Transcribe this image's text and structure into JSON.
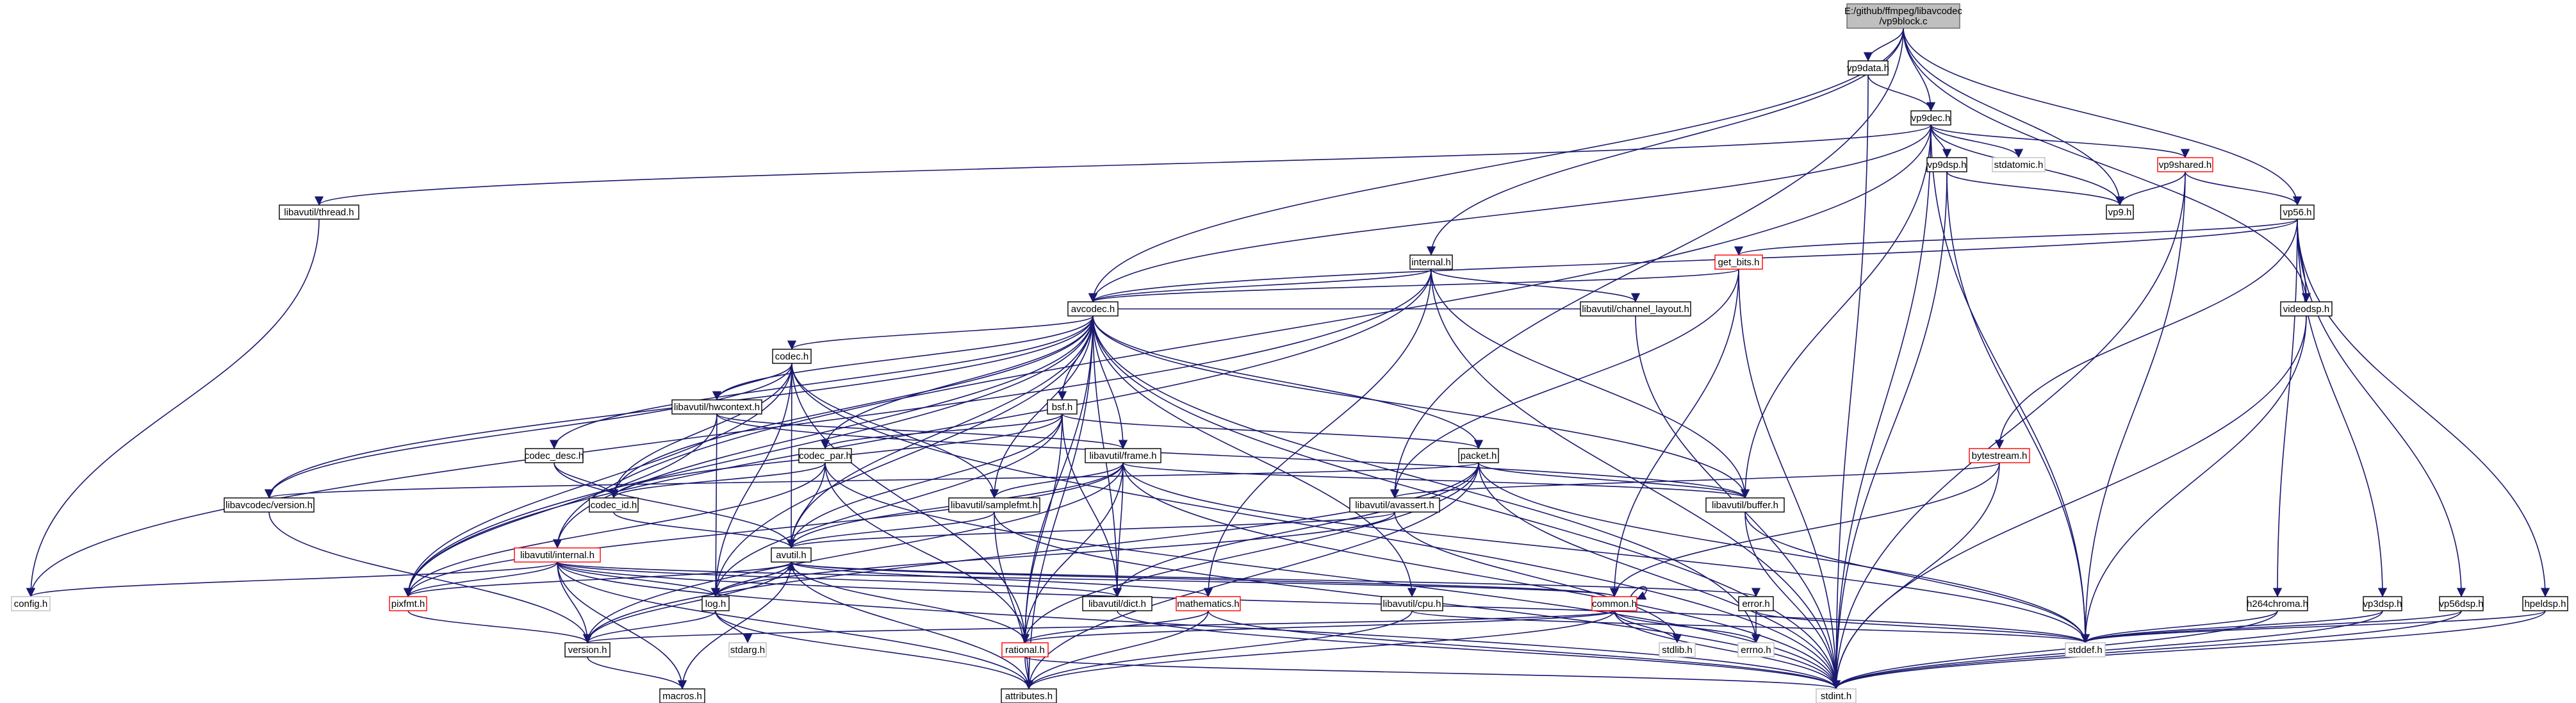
{
  "graph": {
    "root": "vp9block.c",
    "root_path": "E:/github/ffmpeg/libavcodec",
    "nodes": [
      {
        "id": "root",
        "label": "E:/github/ffmpeg/libavcodec\n/vp9block.c",
        "style": "root"
      },
      {
        "id": "vp9data_h",
        "label": "vp9data.h",
        "style": "normal"
      },
      {
        "id": "vp9dec_h",
        "label": "vp9dec.h",
        "style": "normal"
      },
      {
        "id": "vp9dsp_h",
        "label": "vp9dsp.h",
        "style": "normal"
      },
      {
        "id": "stdatomic_h",
        "label": "stdatomic.h",
        "style": "grey"
      },
      {
        "id": "vp9shared_h",
        "label": "vp9shared.h",
        "style": "red"
      },
      {
        "id": "vp9_h",
        "label": "vp9.h",
        "style": "normal"
      },
      {
        "id": "lu_thread_h",
        "label": "libavutil/thread.h",
        "style": "normal"
      },
      {
        "id": "vp56_h",
        "label": "vp56.h",
        "style": "normal"
      },
      {
        "id": "internal_h",
        "label": "internal.h",
        "style": "normal"
      },
      {
        "id": "get_bits_h",
        "label": "get_bits.h",
        "style": "red"
      },
      {
        "id": "avcodec_h",
        "label": "avcodec.h",
        "style": "normal"
      },
      {
        "id": "videodsp_h",
        "label": "videodsp.h",
        "style": "normal"
      },
      {
        "id": "codec_h",
        "label": "codec.h",
        "style": "normal"
      },
      {
        "id": "lu_channel_layout_h",
        "label": "libavutil/channel_layout.h",
        "style": "normal"
      },
      {
        "id": "lu_hwcontext_h",
        "label": "libavutil/hwcontext.h",
        "style": "normal"
      },
      {
        "id": "bsf_h",
        "label": "bsf.h",
        "style": "normal"
      },
      {
        "id": "codec_desc_h",
        "label": "codec_desc.h",
        "style": "normal"
      },
      {
        "id": "codec_par_h",
        "label": "codec_par.h",
        "style": "normal"
      },
      {
        "id": "lu_frame_h",
        "label": "libavutil/frame.h",
        "style": "normal"
      },
      {
        "id": "packet_h",
        "label": "packet.h",
        "style": "normal"
      },
      {
        "id": "bytestream_h",
        "label": "bytestream.h",
        "style": "red"
      },
      {
        "id": "lc_version_h",
        "label": "libavcodec/version.h",
        "style": "normal"
      },
      {
        "id": "codec_id_h",
        "label": "codec_id.h",
        "style": "normal"
      },
      {
        "id": "lu_samplefmt_h",
        "label": "libavutil/samplefmt.h",
        "style": "normal"
      },
      {
        "id": "lu_avassert_h",
        "label": "libavutil/avassert.h",
        "style": "normal"
      },
      {
        "id": "lu_buffer_h",
        "label": "libavutil/buffer.h",
        "style": "normal"
      },
      {
        "id": "lu_internal_h",
        "label": "libavutil/internal.h",
        "style": "red"
      },
      {
        "id": "avutil_h",
        "label": "avutil.h",
        "style": "normal"
      },
      {
        "id": "config_h",
        "label": "config.h",
        "style": "grey"
      },
      {
        "id": "pixfmt_h",
        "label": "pixfmt.h",
        "style": "red"
      },
      {
        "id": "log_h",
        "label": "log.h",
        "style": "normal"
      },
      {
        "id": "lu_dict_h",
        "label": "libavutil/dict.h",
        "style": "normal"
      },
      {
        "id": "mathematics_h",
        "label": "mathematics.h",
        "style": "red"
      },
      {
        "id": "lu_cpu_h",
        "label": "libavutil/cpu.h",
        "style": "normal"
      },
      {
        "id": "common_h",
        "label": "common.h",
        "style": "red"
      },
      {
        "id": "error_h",
        "label": "error.h",
        "style": "normal"
      },
      {
        "id": "h264chroma_h",
        "label": "h264chroma.h",
        "style": "normal"
      },
      {
        "id": "vp3dsp_h",
        "label": "vp3dsp.h",
        "style": "normal"
      },
      {
        "id": "vp56dsp_h",
        "label": "vp56dsp.h",
        "style": "normal"
      },
      {
        "id": "hpeldsp_h",
        "label": "hpeldsp.h",
        "style": "normal"
      },
      {
        "id": "stdarg_h",
        "label": "stdarg.h",
        "style": "grey"
      },
      {
        "id": "version_h",
        "label": "version.h",
        "style": "normal"
      },
      {
        "id": "rational_h",
        "label": "rational.h",
        "style": "red"
      },
      {
        "id": "stdlib_h",
        "label": "stdlib.h",
        "style": "grey"
      },
      {
        "id": "errno_h",
        "label": "errno.h",
        "style": "grey"
      },
      {
        "id": "stddef_h",
        "label": "stddef.h",
        "style": "grey"
      },
      {
        "id": "macros_h",
        "label": "macros.h",
        "style": "normal"
      },
      {
        "id": "attributes_h",
        "label": "attributes.h",
        "style": "normal"
      },
      {
        "id": "stdint_h",
        "label": "stdint.h",
        "style": "grey"
      }
    ],
    "edges": [
      [
        "root",
        "vp9data_h"
      ],
      [
        "root",
        "vp9dec_h"
      ],
      [
        "root",
        "vp9_h"
      ],
      [
        "root",
        "vp56_h"
      ],
      [
        "root",
        "internal_h"
      ],
      [
        "root",
        "avcodec_h"
      ],
      [
        "root",
        "videodsp_h"
      ],
      [
        "root",
        "lu_avassert_h"
      ],
      [
        "vp9data_h",
        "vp9dec_h"
      ],
      [
        "vp9data_h",
        "stdint_h"
      ],
      [
        "vp9dec_h",
        "vp9dsp_h"
      ],
      [
        "vp9dec_h",
        "stdatomic_h"
      ],
      [
        "vp9dec_h",
        "vp9shared_h"
      ],
      [
        "vp9dec_h",
        "vp9_h"
      ],
      [
        "vp9dec_h",
        "lu_thread_h"
      ],
      [
        "vp9dec_h",
        "stddef_h"
      ],
      [
        "vp9dec_h",
        "stdint_h"
      ],
      [
        "vp9dec_h",
        "lu_buffer_h"
      ],
      [
        "vp9dec_h",
        "avcodec_h"
      ],
      [
        "vp9dec_h",
        "lu_internal_h"
      ],
      [
        "vp9dsp_h",
        "vp9_h"
      ],
      [
        "vp9dsp_h",
        "stddef_h"
      ],
      [
        "vp9dsp_h",
        "stdint_h"
      ],
      [
        "vp9shared_h",
        "vp9_h"
      ],
      [
        "vp9shared_h",
        "vp56_h"
      ],
      [
        "vp9shared_h",
        "stddef_h"
      ],
      [
        "vp9shared_h",
        "stdint_h"
      ],
      [
        "lu_thread_h",
        "config_h"
      ],
      [
        "vp56_h",
        "get_bits_h"
      ],
      [
        "vp56_h",
        "avcodec_h"
      ],
      [
        "vp56_h",
        "videodsp_h"
      ],
      [
        "vp56_h",
        "bytestream_h"
      ],
      [
        "vp56_h",
        "h264chroma_h"
      ],
      [
        "vp56_h",
        "vp3dsp_h"
      ],
      [
        "vp56_h",
        "vp56dsp_h"
      ],
      [
        "vp56_h",
        "hpeldsp_h"
      ],
      [
        "internal_h",
        "avcodec_h"
      ],
      [
        "internal_h",
        "lu_channel_layout_h"
      ],
      [
        "internal_h",
        "lu_buffer_h"
      ],
      [
        "internal_h",
        "mathematics_h"
      ],
      [
        "internal_h",
        "stdint_h"
      ],
      [
        "internal_h",
        "config_h"
      ],
      [
        "internal_h",
        "pixfmt_h"
      ],
      [
        "get_bits_h",
        "avcodec_h"
      ],
      [
        "get_bits_h",
        "lu_avassert_h"
      ],
      [
        "get_bits_h",
        "common_h"
      ],
      [
        "get_bits_h",
        "stdint_h"
      ],
      [
        "avcodec_h",
        "codec_h"
      ],
      [
        "avcodec_h",
        "lu_channel_layout_h"
      ],
      [
        "avcodec_h",
        "lu_hwcontext_h"
      ],
      [
        "avcodec_h",
        "bsf_h"
      ],
      [
        "avcodec_h",
        "codec_desc_h"
      ],
      [
        "avcodec_h",
        "codec_par_h"
      ],
      [
        "avcodec_h",
        "lu_frame_h"
      ],
      [
        "avcodec_h",
        "packet_h"
      ],
      [
        "avcodec_h",
        "lc_version_h"
      ],
      [
        "avcodec_h",
        "codec_id_h"
      ],
      [
        "avcodec_h",
        "lu_samplefmt_h"
      ],
      [
        "avcodec_h",
        "lu_buffer_h"
      ],
      [
        "avcodec_h",
        "avutil_h"
      ],
      [
        "avcodec_h",
        "pixfmt_h"
      ],
      [
        "avcodec_h",
        "log_h"
      ],
      [
        "avcodec_h",
        "lu_dict_h"
      ],
      [
        "avcodec_h",
        "lu_cpu_h"
      ],
      [
        "avcodec_h",
        "rational_h"
      ],
      [
        "avcodec_h",
        "attributes_h"
      ],
      [
        "avcodec_h",
        "errno_h"
      ],
      [
        "avcodec_h",
        "stdint_h"
      ],
      [
        "avcodec_h",
        "lu_internal_h"
      ],
      [
        "videodsp_h",
        "stddef_h"
      ],
      [
        "videodsp_h",
        "stdint_h"
      ],
      [
        "codec_h",
        "lu_hwcontext_h"
      ],
      [
        "codec_h",
        "codec_id_h"
      ],
      [
        "codec_h",
        "lc_version_h"
      ],
      [
        "codec_h",
        "avutil_h"
      ],
      [
        "codec_h",
        "lu_samplefmt_h"
      ],
      [
        "codec_h",
        "log_h"
      ],
      [
        "codec_h",
        "pixfmt_h"
      ],
      [
        "codec_h",
        "rational_h"
      ],
      [
        "codec_h",
        "stdint_h"
      ],
      [
        "lu_channel_layout_h",
        "stdint_h"
      ],
      [
        "lu_hwcontext_h",
        "lu_buffer_h"
      ],
      [
        "lu_hwcontext_h",
        "lu_frame_h"
      ],
      [
        "lu_hwcontext_h",
        "log_h"
      ],
      [
        "lu_hwcontext_h",
        "pixfmt_h"
      ],
      [
        "bsf_h",
        "codec_id_h"
      ],
      [
        "bsf_h",
        "codec_par_h"
      ],
      [
        "bsf_h",
        "packet_h"
      ],
      [
        "bsf_h",
        "lu_dict_h"
      ],
      [
        "bsf_h",
        "log_h"
      ],
      [
        "bsf_h",
        "rational_h"
      ],
      [
        "bsf_h",
        "avutil_h"
      ],
      [
        "codec_desc_h",
        "codec_id_h"
      ],
      [
        "codec_desc_h",
        "avutil_h"
      ],
      [
        "codec_par_h",
        "codec_id_h"
      ],
      [
        "codec_par_h",
        "avutil_h"
      ],
      [
        "codec_par_h",
        "pixfmt_h"
      ],
      [
        "codec_par_h",
        "rational_h"
      ],
      [
        "codec_par_h",
        "stdint_h"
      ],
      [
        "lu_frame_h",
        "avutil_h"
      ],
      [
        "lu_frame_h",
        "lu_buffer_h"
      ],
      [
        "lu_frame_h",
        "lu_dict_h"
      ],
      [
        "lu_frame_h",
        "rational_h"
      ],
      [
        "lu_frame_h",
        "lu_samplefmt_h"
      ],
      [
        "lu_frame_h",
        "pixfmt_h"
      ],
      [
        "lu_frame_h",
        "version_h"
      ],
      [
        "lu_frame_h",
        "stddef_h"
      ],
      [
        "lu_frame_h",
        "stdint_h"
      ],
      [
        "packet_h",
        "lu_buffer_h"
      ],
      [
        "packet_h",
        "lu_dict_h"
      ],
      [
        "packet_h",
        "rational_h"
      ],
      [
        "packet_h",
        "attributes_h"
      ],
      [
        "packet_h",
        "stddef_h"
      ],
      [
        "packet_h",
        "stdint_h"
      ],
      [
        "packet_h",
        "lc_version_h"
      ],
      [
        "packet_h",
        "version_h"
      ],
      [
        "bytestream_h",
        "lu_avassert_h"
      ],
      [
        "bytestream_h",
        "common_h"
      ],
      [
        "bytestream_h",
        "stdint_h"
      ],
      [
        "lc_version_h",
        "version_h"
      ],
      [
        "codec_id_h",
        "avutil_h"
      ],
      [
        "lu_samplefmt_h",
        "attributes_h"
      ],
      [
        "lu_samplefmt_h",
        "avutil_h"
      ],
      [
        "lu_samplefmt_h",
        "stdint_h"
      ],
      [
        "lu_avassert_h",
        "avutil_h"
      ],
      [
        "lu_avassert_h",
        "log_h"
      ],
      [
        "lu_avassert_h",
        "stdlib_h"
      ],
      [
        "lu_buffer_h",
        "stddef_h"
      ],
      [
        "lu_buffer_h",
        "stdint_h"
      ],
      [
        "lu_internal_h",
        "config_h"
      ],
      [
        "lu_internal_h",
        "pixfmt_h"
      ],
      [
        "lu_internal_h",
        "log_h"
      ],
      [
        "lu_internal_h",
        "lu_dict_h"
      ],
      [
        "lu_internal_h",
        "common_h"
      ],
      [
        "lu_internal_h",
        "version_h"
      ],
      [
        "lu_internal_h",
        "macros_h"
      ],
      [
        "lu_internal_h",
        "attributes_h"
      ],
      [
        "lu_internal_h",
        "stdint_h"
      ],
      [
        "lu_internal_h",
        "stddef_h"
      ],
      [
        "avutil_h",
        "common_h"
      ],
      [
        "avutil_h",
        "error_h"
      ],
      [
        "avutil_h",
        "rational_h"
      ],
      [
        "avutil_h",
        "version_h"
      ],
      [
        "avutil_h",
        "macros_h"
      ],
      [
        "avutil_h",
        "mathematics_h"
      ],
      [
        "avutil_h",
        "log_h"
      ],
      [
        "avutil_h",
        "pixfmt_h"
      ],
      [
        "avutil_h",
        "attributes_h"
      ],
      [
        "pixfmt_h",
        "version_h"
      ],
      [
        "log_h",
        "avutil_h"
      ],
      [
        "log_h",
        "attributes_h"
      ],
      [
        "log_h",
        "version_h"
      ],
      [
        "log_h",
        "stdarg_h"
      ],
      [
        "lu_dict_h",
        "stdint_h"
      ],
      [
        "mathematics_h",
        "rational_h"
      ],
      [
        "mathematics_h",
        "attributes_h"
      ],
      [
        "mathematics_h",
        "stdint_h"
      ],
      [
        "lu_cpu_h",
        "attributes_h"
      ],
      [
        "lu_cpu_h",
        "stddef_h"
      ],
      [
        "common_h",
        "errno_h"
      ],
      [
        "common_h",
        "stdlib_h"
      ],
      [
        "common_h",
        "attributes_h"
      ],
      [
        "common_h",
        "stdint_h"
      ],
      [
        "common_h",
        "common_h"
      ],
      [
        "common_h",
        "rational_h"
      ],
      [
        "common_h",
        "version_h"
      ],
      [
        "error_h",
        "errno_h"
      ],
      [
        "error_h",
        "stddef_h"
      ],
      [
        "h264chroma_h",
        "stddef_h"
      ],
      [
        "h264chroma_h",
        "stdint_h"
      ],
      [
        "vp3dsp_h",
        "stddef_h"
      ],
      [
        "vp3dsp_h",
        "stdint_h"
      ],
      [
        "vp56dsp_h",
        "stddef_h"
      ],
      [
        "vp56dsp_h",
        "stdint_h"
      ],
      [
        "hpeldsp_h",
        "stddef_h"
      ],
      [
        "hpeldsp_h",
        "stdint_h"
      ],
      [
        "version_h",
        "macros_h"
      ],
      [
        "rational_h",
        "attributes_h"
      ],
      [
        "rational_h",
        "stdint_h"
      ]
    ]
  }
}
